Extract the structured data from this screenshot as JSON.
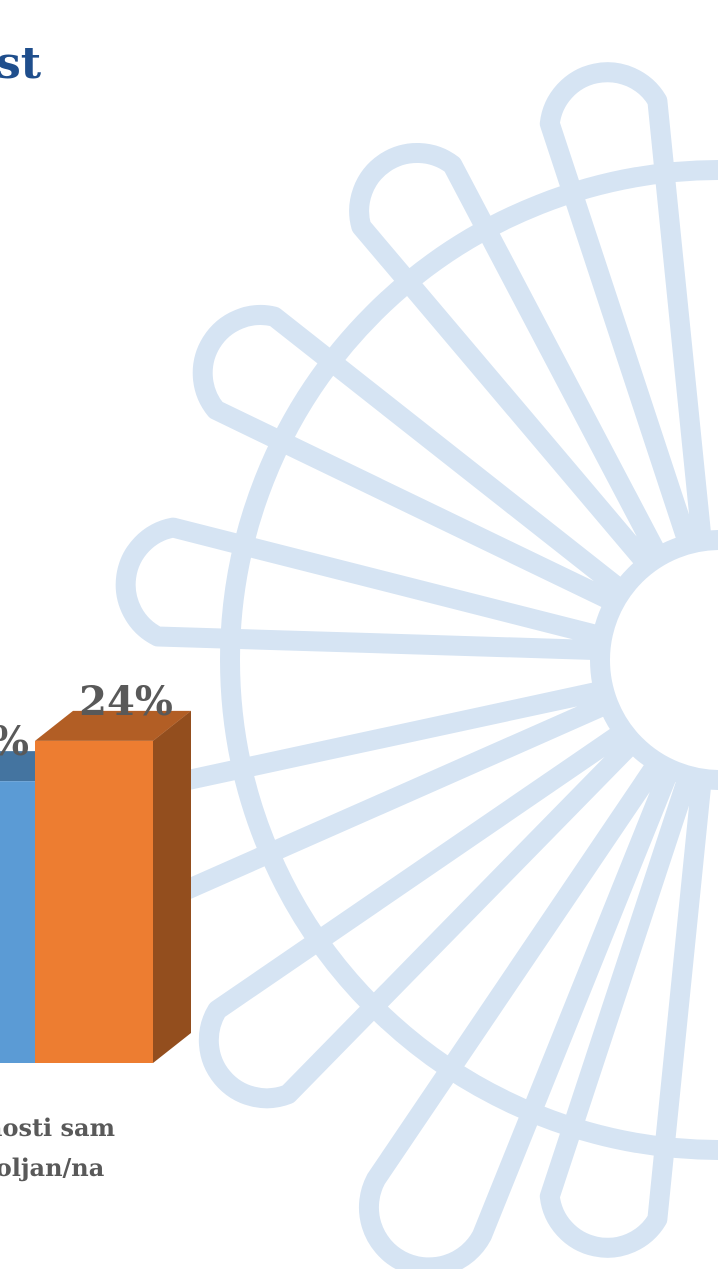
{
  "chart_data": {
    "type": "bar3d",
    "title": "st",
    "categories": [
      "nosti sam\noljan/na"
    ],
    "series": [
      {
        "color": "#5b9bd5",
        "values": [
          21
        ],
        "value_labels": [
          "%"
        ]
      },
      {
        "color": "#ed7d31",
        "values": [
          24
        ],
        "value_labels": [
          "24%"
        ]
      }
    ]
  }
}
